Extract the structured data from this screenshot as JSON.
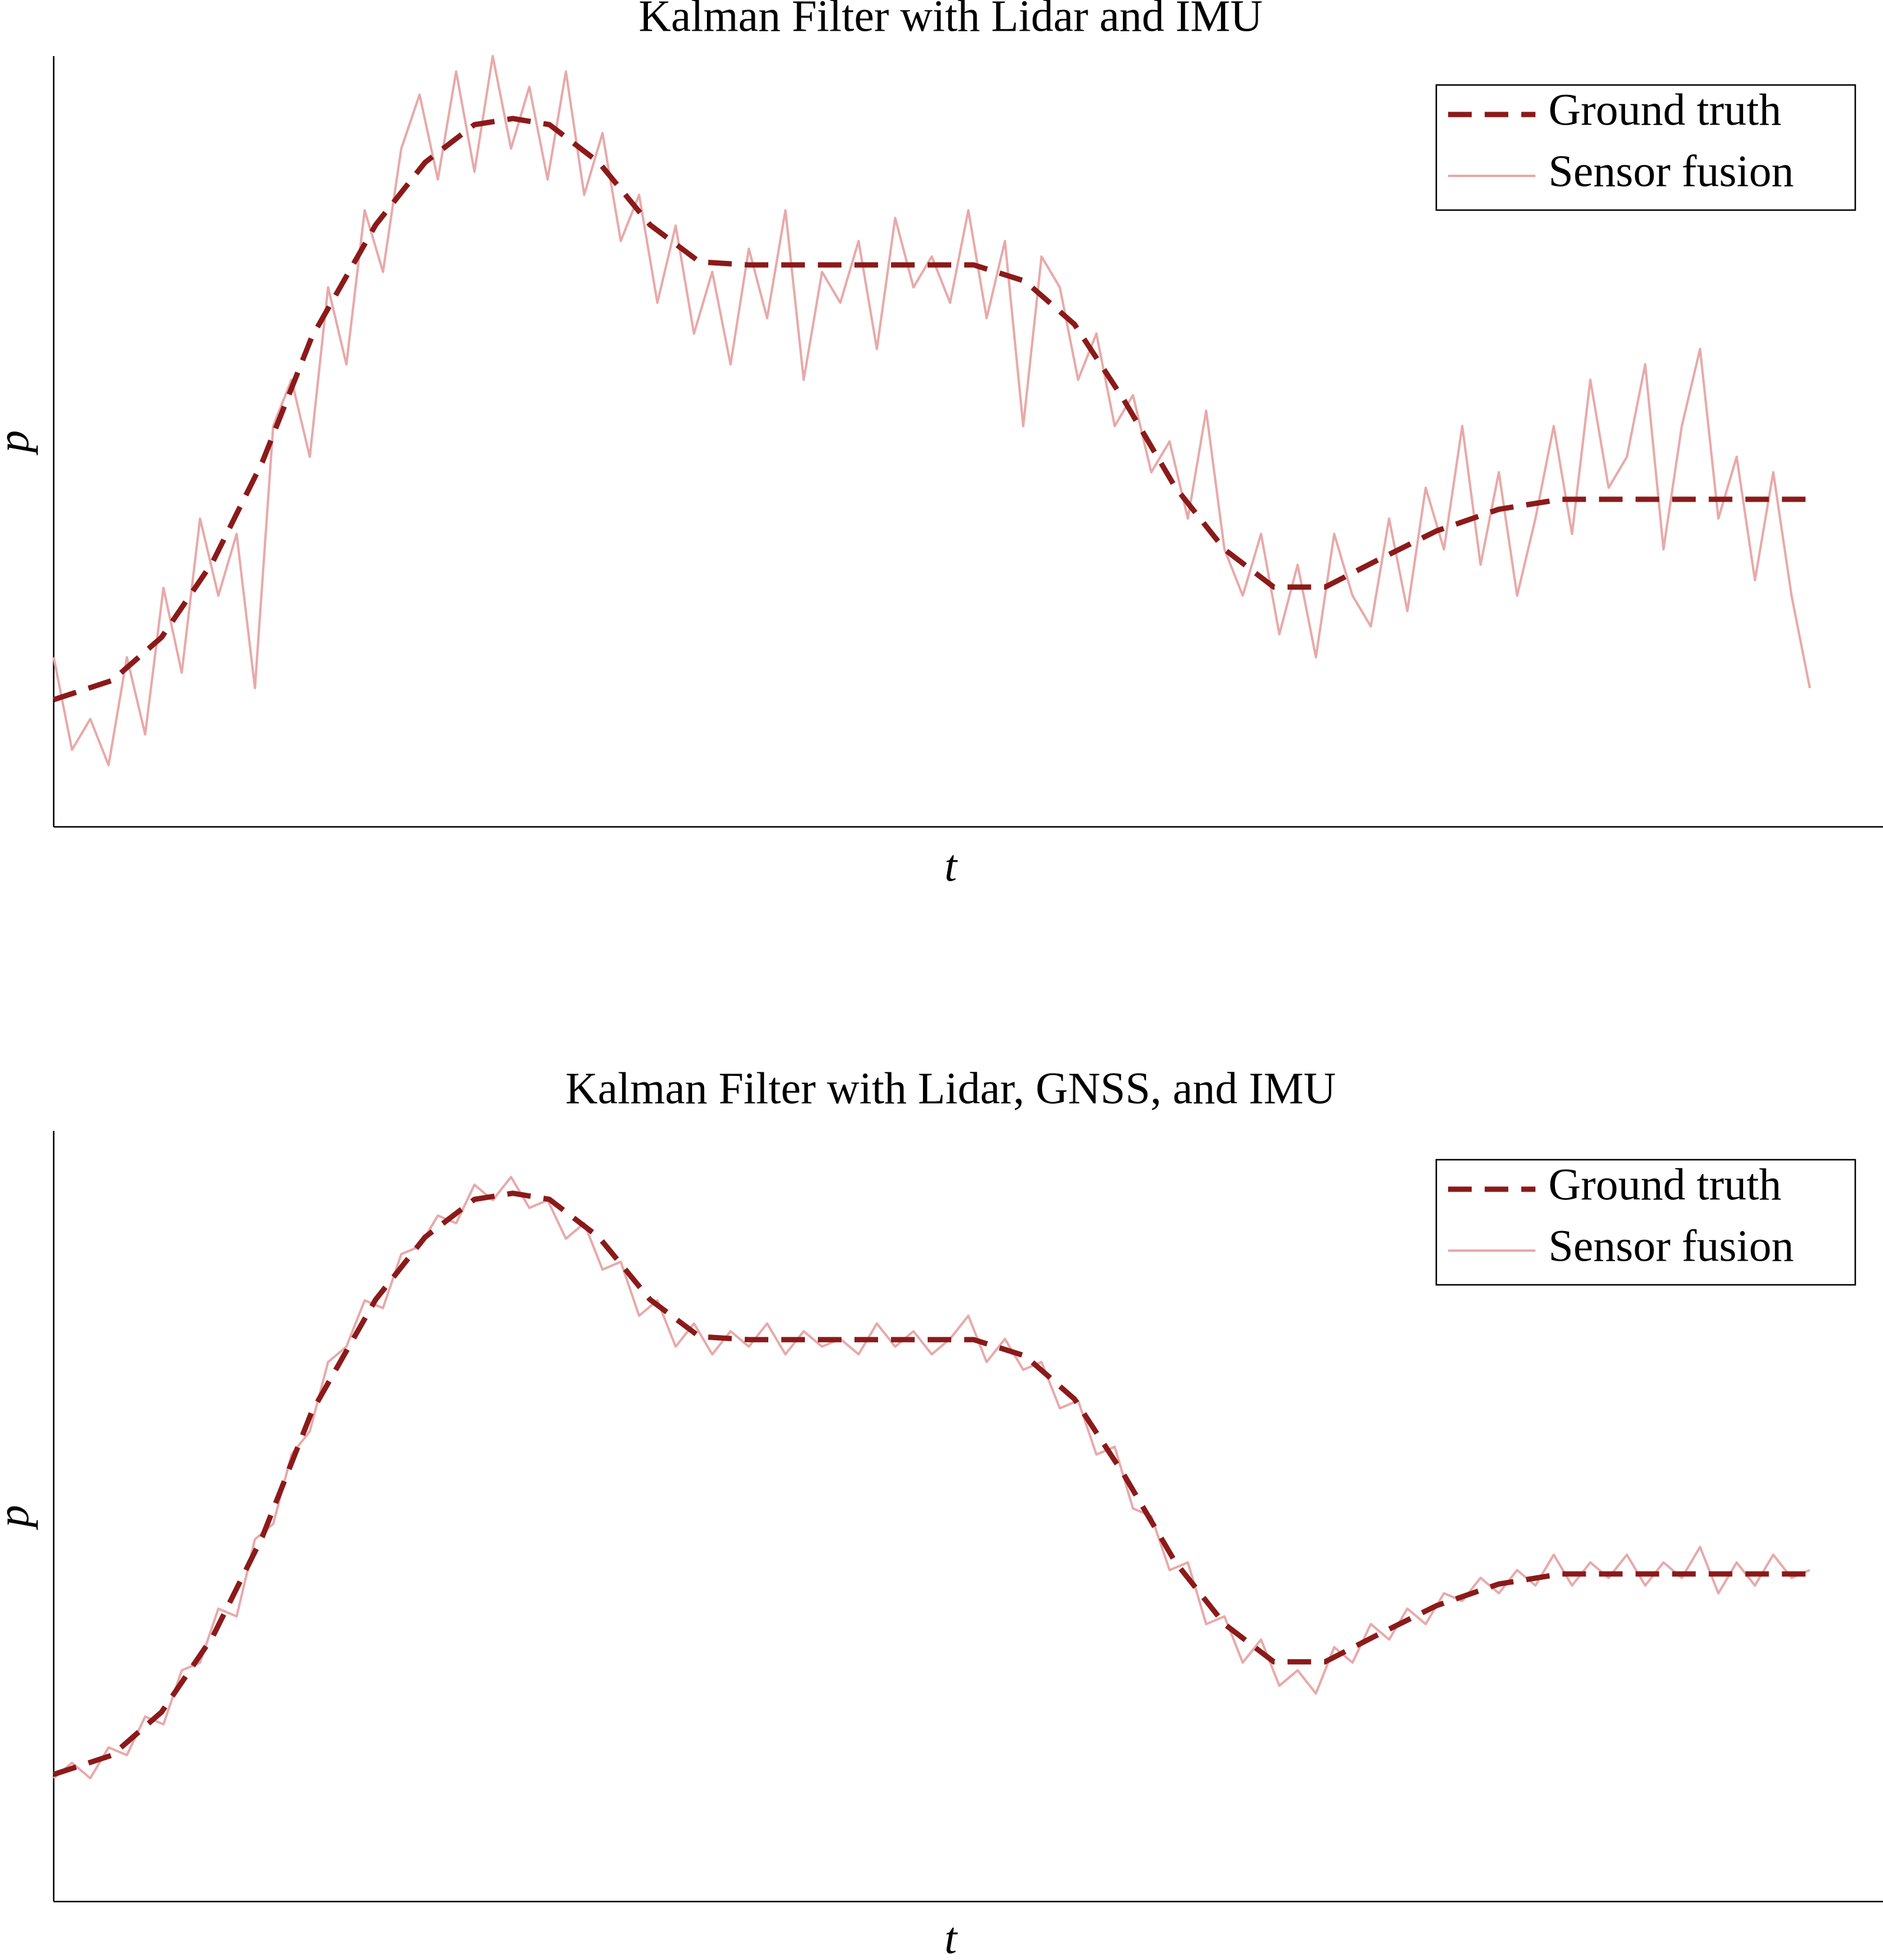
{
  "chart_data": [
    {
      "type": "line",
      "title": "Kalman Filter with Lidar and IMU",
      "xlabel": "t",
      "ylabel": "p",
      "xlim": [
        0,
        100
      ],
      "ylim": [
        0,
        100
      ],
      "legend": "upper right",
      "series": [
        {
          "name": "Ground truth",
          "color": "#8b1a1a",
          "style": "dashed",
          "x": [
            0,
            3.2,
            5.9,
            8.7,
            11.4,
            14.1,
            17.6,
            20.3,
            23.0,
            25.1,
            27.1,
            29.8,
            32.6,
            35.3,
            38.0,
            50.3,
            53.1,
            55.8,
            58.5,
            61.3,
            64.0,
            66.7,
            69.5,
            72.2,
            75.6,
            79.0,
            82.4,
            95.8
          ],
          "values": [
            16.5,
            19.0,
            24.6,
            34.4,
            47.3,
            63.5,
            78.1,
            86.2,
            91.1,
            91.9,
            91.1,
            86.2,
            78.1,
            73.3,
            72.9,
            72.9,
            70.8,
            65.2,
            55.4,
            44.1,
            36.0,
            31.1,
            31.1,
            34.4,
            38.4,
            41.2,
            42.5,
            42.5
          ]
        },
        {
          "name": "Sensor fusion",
          "color": "#e8a9a9",
          "style": "solid",
          "x": [
            0,
            1,
            2,
            3,
            4,
            5,
            6,
            7,
            8,
            9,
            10,
            11,
            12,
            13,
            14,
            15,
            16,
            17,
            18,
            19,
            20,
            21,
            22,
            23,
            24,
            25,
            26,
            27,
            28,
            29,
            30,
            31,
            32,
            33,
            34,
            35,
            36,
            37,
            38,
            39,
            40,
            41,
            42,
            43,
            44,
            45,
            46,
            47,
            48,
            49,
            50,
            51,
            52,
            53,
            54,
            55,
            56,
            57,
            58,
            59,
            60,
            61,
            62,
            63,
            64,
            65,
            66,
            67,
            68,
            69,
            70,
            71,
            72,
            73,
            74,
            75,
            76,
            77,
            78,
            79,
            80,
            81,
            82,
            83,
            84,
            85,
            86,
            87,
            88,
            89,
            90,
            91,
            92,
            93,
            94,
            95,
            96
          ],
          "values": [
            22,
            10,
            14,
            8,
            22,
            12,
            31,
            20,
            40,
            30,
            38,
            18,
            52,
            58,
            48,
            70,
            60,
            80,
            72,
            88,
            95,
            84,
            98,
            85,
            100,
            88,
            96,
            84,
            98,
            82,
            90,
            76,
            82,
            68,
            78,
            64,
            72,
            60,
            75,
            66,
            80,
            58,
            72,
            68,
            76,
            62,
            79,
            70,
            74,
            68,
            80,
            66,
            76,
            52,
            74,
            70,
            58,
            64,
            52,
            56,
            46,
            50,
            40,
            54,
            36,
            30,
            38,
            25,
            34,
            22,
            38,
            30,
            26,
            40,
            28,
            44,
            36,
            52,
            34,
            46,
            30,
            40,
            52,
            38,
            58,
            44,
            48,
            60,
            36,
            52,
            62,
            40,
            48,
            32,
            46,
            30,
            18
          ]
        }
      ]
    },
    {
      "type": "line",
      "title": "Kalman Filter with Lidar, GNSS, and IMU",
      "xlabel": "t",
      "ylabel": "p",
      "xlim": [
        0,
        100
      ],
      "ylim": [
        0,
        100
      ],
      "legend": "upper right",
      "series": [
        {
          "name": "Ground truth",
          "color": "#8b1a1a",
          "style": "dashed",
          "x": [
            0,
            3.2,
            5.9,
            8.7,
            11.4,
            14.1,
            17.6,
            20.3,
            23.0,
            25.1,
            27.1,
            29.8,
            32.6,
            35.3,
            38.0,
            50.3,
            53.1,
            55.8,
            58.5,
            61.3,
            64.0,
            66.7,
            69.5,
            72.2,
            75.6,
            79.0,
            82.4,
            95.8
          ],
          "values": [
            16.5,
            19.0,
            24.6,
            34.4,
            47.3,
            63.5,
            78.1,
            86.2,
            91.1,
            91.9,
            91.1,
            86.2,
            78.1,
            73.3,
            72.9,
            72.9,
            70.8,
            65.2,
            55.4,
            44.1,
            36.0,
            31.1,
            31.1,
            34.4,
            38.4,
            41.2,
            42.5,
            42.5
          ]
        },
        {
          "name": "Sensor fusion",
          "color": "#e8a9a9",
          "style": "solid",
          "x": [
            0,
            1,
            2,
            3,
            4,
            5,
            6,
            7,
            8,
            9,
            10,
            11,
            12,
            13,
            14,
            15,
            16,
            17,
            18,
            19,
            20,
            21,
            22,
            23,
            24,
            25,
            26,
            27,
            28,
            29,
            30,
            31,
            32,
            33,
            34,
            35,
            36,
            37,
            38,
            39,
            40,
            41,
            42,
            43,
            44,
            45,
            46,
            47,
            48,
            49,
            50,
            51,
            52,
            53,
            54,
            55,
            56,
            57,
            58,
            59,
            60,
            61,
            62,
            63,
            64,
            65,
            66,
            67,
            68,
            69,
            70,
            71,
            72,
            73,
            74,
            75,
            76,
            77,
            78,
            79,
            80,
            81,
            82,
            83,
            84,
            85,
            86,
            87,
            88,
            89,
            90,
            91,
            92,
            93,
            94,
            95,
            96
          ],
          "values": [
            16,
            18,
            16,
            20,
            19,
            24,
            23,
            30,
            31,
            38,
            37,
            47,
            49,
            58,
            61,
            70,
            72,
            78,
            77,
            84,
            85,
            89,
            88,
            93,
            91,
            94,
            90,
            91,
            86,
            88,
            82,
            83,
            76,
            78,
            72,
            75,
            71,
            74,
            72,
            75,
            71,
            74,
            72,
            73,
            71,
            75,
            72,
            74,
            71,
            73,
            76,
            70,
            73,
            69,
            70,
            64,
            65,
            58,
            59,
            51,
            50,
            43,
            44,
            36,
            37,
            31,
            34,
            28,
            30,
            27,
            33,
            31,
            36,
            34,
            38,
            36,
            40,
            39,
            42,
            40,
            43,
            41,
            45,
            41,
            44,
            42,
            45,
            41,
            44,
            42,
            46,
            40,
            44,
            41,
            45,
            42,
            43
          ]
        }
      ]
    }
  ]
}
